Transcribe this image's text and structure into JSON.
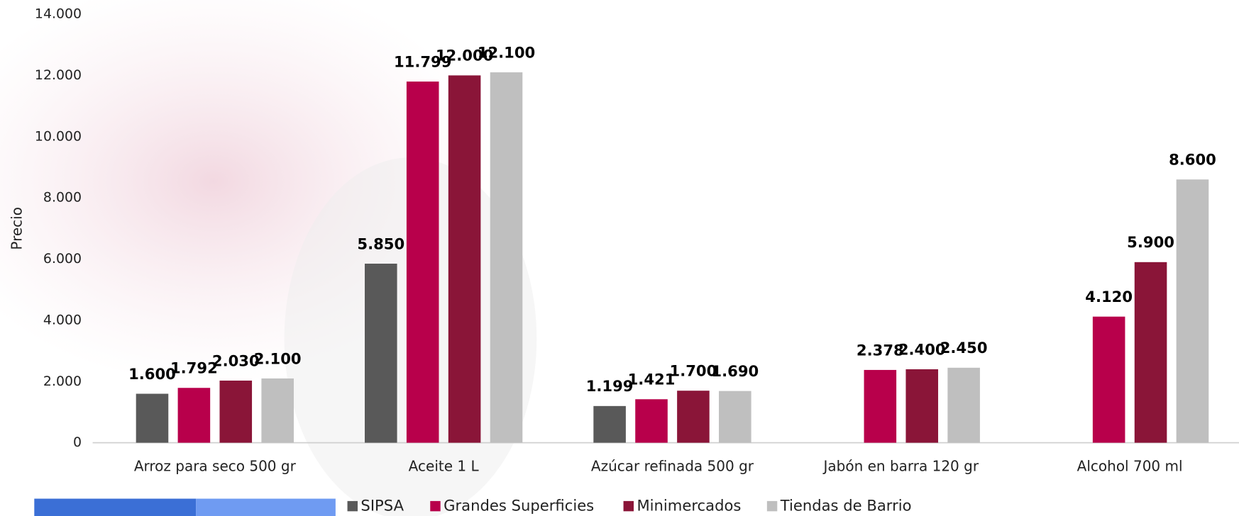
{
  "chart_data": {
    "type": "bar",
    "y_label": "Precio",
    "categories": [
      "Arroz para seco 500 gr",
      "Aceite 1 L",
      "Azúcar refinada 500 gr",
      "Jabón en barra 120 gr",
      "Alcohol 700 ml"
    ],
    "series": [
      {
        "name": "SIPSA",
        "color": "#595959",
        "values": [
          1600,
          5850,
          1199,
          null,
          null
        ],
        "value_labels": [
          "1.600",
          "5.850",
          "1.199",
          null,
          null
        ]
      },
      {
        "name": "Grandes Superficies",
        "color": "#b8004b",
        "values": [
          1792,
          11799,
          1421,
          2378,
          4120
        ],
        "value_labels": [
          "1.792",
          "11.799",
          "1.421",
          "2.378",
          "4.120"
        ]
      },
      {
        "name": "Minimercados",
        "color": "#8a1538",
        "values": [
          2030,
          12000,
          1700,
          2400,
          5900
        ],
        "value_labels": [
          "2.030",
          "12.000",
          "1.700",
          "2.400",
          "5.900"
        ]
      },
      {
        "name": "Tiendas de Barrio",
        "color": "#bfbfbf",
        "values": [
          2100,
          12100,
          1690,
          2450,
          8600
        ],
        "value_labels": [
          "2.100",
          "12.100",
          "1.690",
          "2.450",
          "8.600"
        ]
      }
    ],
    "ylim": [
      0,
      14000
    ],
    "yticks": [
      0,
      {
        "value": 2000,
        "label": "2.000"
      },
      {
        "value": 4000,
        "label": "4.000"
      },
      {
        "value": 6000,
        "label": "6.000"
      },
      {
        "value": 8000,
        "label": "8.000"
      },
      {
        "value": 10000,
        "label": "10.000"
      },
      {
        "value": 12000,
        "label": "12.000"
      },
      {
        "value": 14000,
        "label": "14.000"
      }
    ],
    "legend": "bottom"
  }
}
